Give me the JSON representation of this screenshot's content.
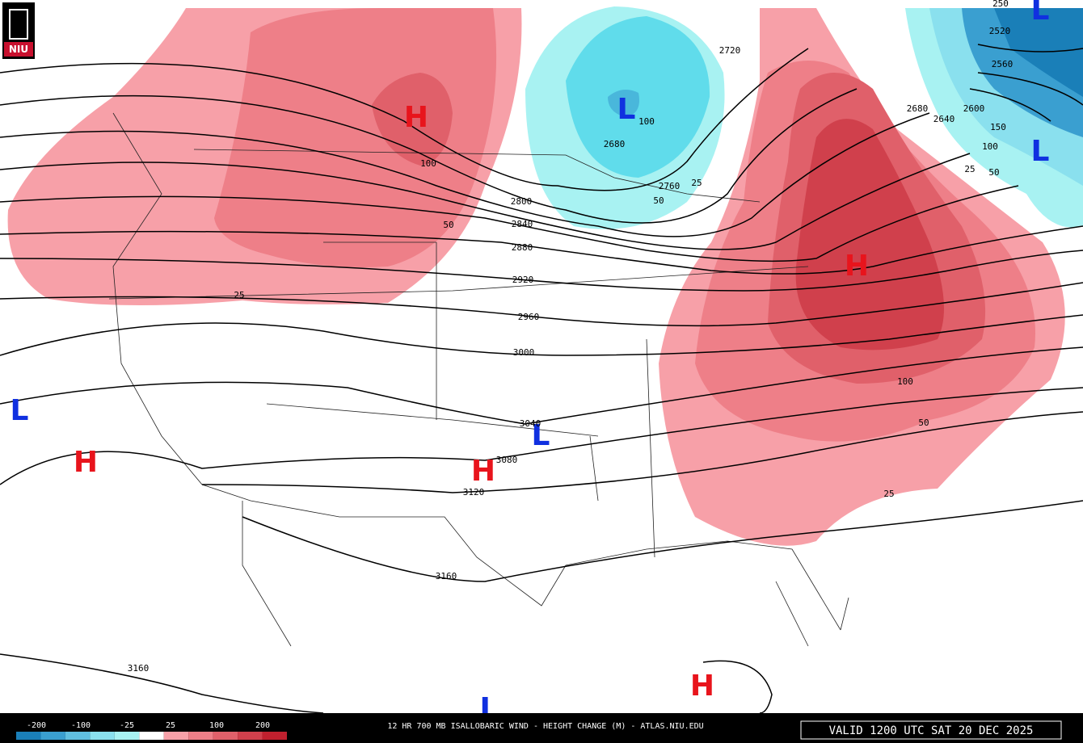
{
  "logo": "NIU",
  "centers": [
    "H",
    "L",
    "H",
    "L",
    "H",
    "H",
    "L",
    "H",
    "L",
    "L",
    "L"
  ],
  "height_contours": [
    2720,
    2680,
    2760,
    2800,
    2840,
    2880,
    2920,
    2960,
    3000,
    3040,
    3080,
    3120,
    3160,
    3160,
    2680,
    2640,
    2560,
    2520,
    2600
  ],
  "change_labels": [
    100,
    50,
    25,
    100,
    50,
    25,
    100,
    25,
    50,
    100,
    150,
    25,
    50,
    250
  ],
  "legend": {
    "labels": [
      -200,
      -100,
      -25,
      25,
      100,
      200
    ],
    "colors": [
      "#1a7fb8",
      "#3a9fd0",
      "#60bfe0",
      "#8ae0ee",
      "#a8f2f2",
      "#ffffff",
      "#f7a0a8",
      "#ee7f88",
      "#e0606a",
      "#d0404c",
      "#c0202e"
    ]
  },
  "caption": "12 HR 700 MB ISALLOBARIC WIND - HEIGHT CHANGE (M) - ATLAS.NIU.EDU",
  "valid": "VALID 1200 UTC SAT 20 DEC 2025"
}
